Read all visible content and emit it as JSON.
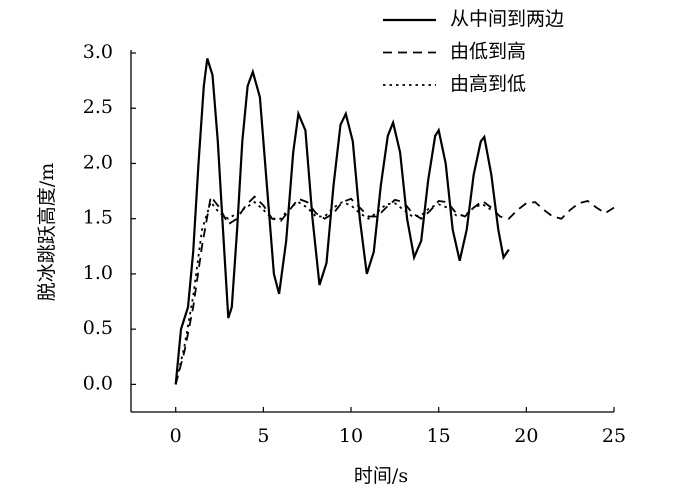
{
  "chart_data": {
    "type": "line",
    "x_label": "时间/s",
    "y_label": "脱冰跳跃高度/m",
    "xlim": [
      -2.55,
      25
    ],
    "ylim": [
      -0.25,
      3.0
    ],
    "xticks": [
      0,
      5,
      10,
      15,
      20,
      25
    ],
    "yticks": [
      {
        "value": 0,
        "label": "0.0"
      },
      {
        "value": 0.5,
        "label": "0.5"
      },
      {
        "value": 1,
        "label": "1.0"
      },
      {
        "value": 1.5,
        "label": "1.5"
      },
      {
        "value": 2,
        "label": "2.0"
      },
      {
        "value": 2.5,
        "label": "2.5"
      },
      {
        "value": 3,
        "label": "3.0"
      }
    ],
    "legend": "top-right",
    "series": [
      {
        "name": "从中间到两边",
        "color": "#000000",
        "style": "solid",
        "x": [
          0,
          0.3,
          0.7,
          1.0,
          1.3,
          1.6,
          1.8,
          2.1,
          2.4,
          2.7,
          3.0,
          3.2,
          3.5,
          3.8,
          4.1,
          4.4,
          4.8,
          5.2,
          5.6,
          5.9,
          6.3,
          6.7,
          7.0,
          7.4,
          7.8,
          8.2,
          8.6,
          9.0,
          9.4,
          9.7,
          10.1,
          10.5,
          10.9,
          11.3,
          11.7,
          12.1,
          12.4,
          12.8,
          13.2,
          13.6,
          14.0,
          14.4,
          14.8,
          15.0,
          15.4,
          15.8,
          16.2,
          16.6,
          17.0,
          17.4,
          17.6,
          18.0,
          18.4,
          18.7,
          19.0
        ],
        "values": [
          0,
          0.5,
          0.7,
          1.2,
          2.0,
          2.7,
          2.95,
          2.8,
          2.2,
          1.4,
          0.6,
          0.7,
          1.4,
          2.2,
          2.7,
          2.83,
          2.6,
          1.8,
          1.0,
          0.82,
          1.3,
          2.1,
          2.45,
          2.3,
          1.5,
          0.9,
          1.1,
          1.8,
          2.35,
          2.45,
          2.2,
          1.5,
          1.0,
          1.2,
          1.8,
          2.25,
          2.37,
          2.1,
          1.5,
          1.15,
          1.3,
          1.85,
          2.25,
          2.3,
          2.0,
          1.4,
          1.12,
          1.4,
          1.9,
          2.2,
          2.24,
          1.9,
          1.4,
          1.15,
          1.22
        ]
      },
      {
        "name": "由低到高",
        "color": "#000000",
        "style": "dashed",
        "x": [
          0,
          0.5,
          1.0,
          1.5,
          2.0,
          2.5,
          3.0,
          3.5,
          4.0,
          4.5,
          5.0,
          5.5,
          6.0,
          6.5,
          7.0,
          7.5,
          8.0,
          8.5,
          9.0,
          9.5,
          10.0,
          10.5,
          11.0,
          11.5,
          12.0,
          12.5,
          13.0,
          13.5,
          14.0,
          14.5,
          15.0,
          15.5,
          16.0,
          16.5,
          17.0,
          17.5,
          18.0,
          18.5,
          19.0,
          19.5,
          20.0,
          20.5,
          21.0,
          21.5,
          22.0,
          22.5,
          23.0,
          23.5,
          24.0,
          24.5,
          25.0
        ],
        "values": [
          0,
          0.3,
          0.7,
          1.25,
          1.7,
          1.6,
          1.45,
          1.5,
          1.62,
          1.7,
          1.62,
          1.5,
          1.48,
          1.58,
          1.68,
          1.65,
          1.55,
          1.5,
          1.55,
          1.65,
          1.68,
          1.6,
          1.52,
          1.52,
          1.6,
          1.67,
          1.65,
          1.55,
          1.5,
          1.57,
          1.66,
          1.65,
          1.55,
          1.52,
          1.6,
          1.66,
          1.6,
          1.52,
          1.5,
          1.58,
          1.64,
          1.65,
          1.58,
          1.52,
          1.5,
          1.58,
          1.64,
          1.66,
          1.6,
          1.55,
          1.6
        ]
      },
      {
        "name": "由高到低",
        "color": "#000000",
        "style": "dotted",
        "x": [
          0,
          0.5,
          1.0,
          1.5,
          2.0,
          2.5,
          3.0,
          3.5,
          4.0,
          4.5,
          5.0,
          5.5,
          6.0,
          6.5,
          7.0,
          7.5,
          8.0,
          8.5,
          9.0,
          9.5,
          10.0,
          10.5,
          11.0,
          11.5,
          12.0,
          12.5,
          13.0,
          13.5,
          14.0,
          14.5,
          15.0,
          15.5,
          16.0,
          16.5,
          17.0,
          17.5,
          18.0
        ],
        "values": [
          0,
          0.35,
          0.8,
          1.4,
          1.65,
          1.55,
          1.5,
          1.55,
          1.6,
          1.65,
          1.58,
          1.5,
          1.5,
          1.6,
          1.65,
          1.6,
          1.52,
          1.52,
          1.6,
          1.65,
          1.62,
          1.55,
          1.5,
          1.56,
          1.63,
          1.64,
          1.58,
          1.52,
          1.53,
          1.6,
          1.63,
          1.6,
          1.53,
          1.53,
          1.6,
          1.63,
          1.58
        ]
      }
    ]
  }
}
